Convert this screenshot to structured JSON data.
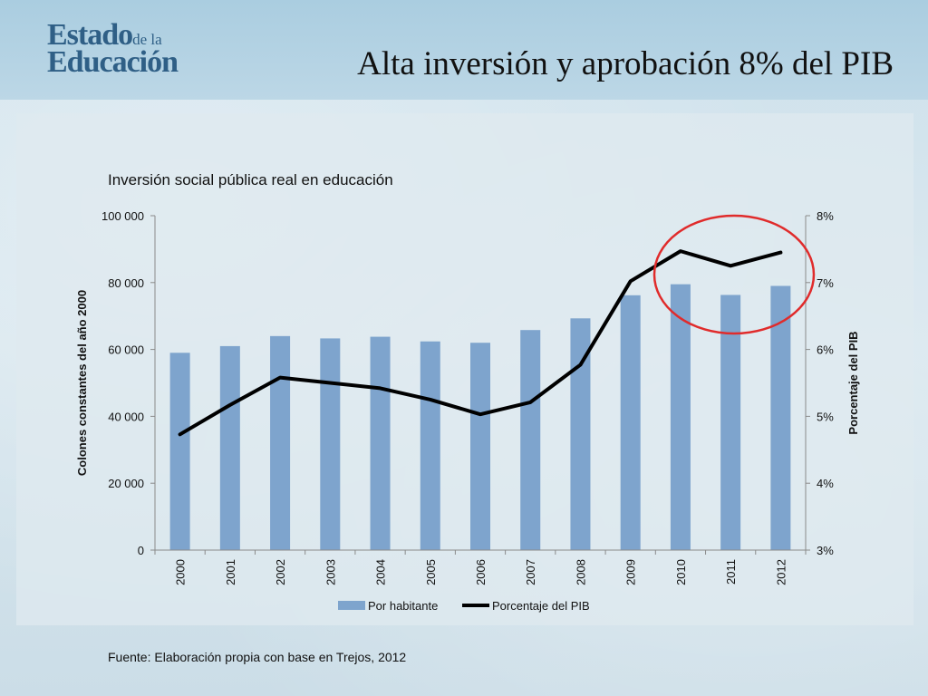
{
  "header": {
    "logo_line1": "Estado",
    "logo_line1_small": "de la",
    "logo_line2": "Educación",
    "slide_title": "Alta inversión y aprobación 8% del PIB"
  },
  "colors": {
    "bars": "#7ea4cd",
    "line": "#000000",
    "highlight_circle": "#e02b2b",
    "logo": "#2f5f86"
  },
  "chart_data": {
    "type": "bar",
    "title": "Inversión social pública real en educación",
    "categories": [
      "2000",
      "2001",
      "2002",
      "2003",
      "2004",
      "2005",
      "2006",
      "2007",
      "2008",
      "2009",
      "2010",
      "2011",
      "2012"
    ],
    "series": [
      {
        "name": "Por habitante",
        "type": "bar",
        "axis": "left",
        "values": [
          59000,
          61000,
          64000,
          63300,
          63800,
          62400,
          62000,
          65800,
          69300,
          76200,
          79500,
          76300,
          79000
        ]
      },
      {
        "name": "Porcentaje del PIB",
        "type": "line",
        "axis": "right",
        "values": [
          4.73,
          5.17,
          5.58,
          5.5,
          5.42,
          5.25,
          5.03,
          5.21,
          5.77,
          7.02,
          7.47,
          7.25,
          7.45
        ]
      }
    ],
    "ylabel": "Colones constantes del año 2000",
    "ylim": [
      0,
      100000
    ],
    "yticks": [
      "0",
      "20 000",
      "40 000",
      "60 000",
      "80 000",
      "100 000"
    ],
    "y2label": "Porcentaje del PIB",
    "y2lim": [
      3,
      8
    ],
    "y2ticks": [
      "3%",
      "4%",
      "5%",
      "6%",
      "7%",
      "8%"
    ],
    "legend_position": "bottom",
    "highlight": "circle around 2010–2012"
  },
  "source": "Fuente: Elaboración propia con base en Trejos, 2012"
}
